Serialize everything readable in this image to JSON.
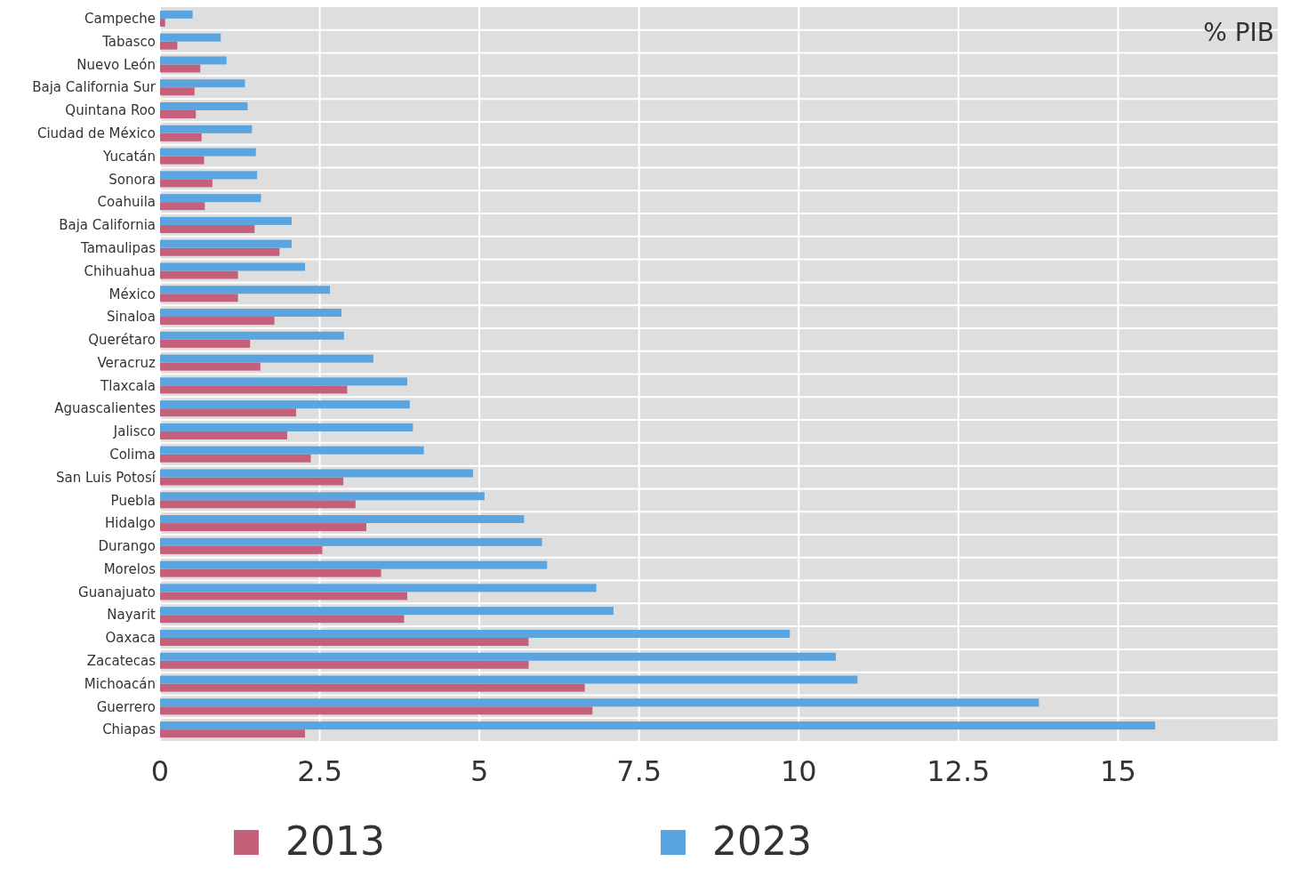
{
  "chart_data": {
    "type": "bar",
    "orientation": "horizontal",
    "categories": [
      "Campeche",
      "Tabasco",
      "Nuevo León",
      "Baja California Sur",
      "Quintana Roo",
      "Ciudad de México",
      "Yucatán",
      "Sonora",
      "Coahuila",
      "Baja California",
      "Tamaulipas",
      "Chihuahua",
      "México",
      "Sinaloa",
      "Querétaro",
      "Veracruz",
      "Tlaxcala",
      "Aguascalientes",
      "Jalisco",
      "Colima",
      "San Luis Potosí",
      "Puebla",
      "Hidalgo",
      "Durango",
      "Morelos",
      "Guanajuato",
      "Nayarit",
      "Oaxaca",
      "Zacatecas",
      "Michoacán",
      "Guerrero",
      "Chiapas"
    ],
    "series": [
      {
        "name": "2013",
        "color": "#c4607a",
        "values": [
          0.08,
          0.27,
          0.63,
          0.54,
          0.56,
          0.65,
          0.69,
          0.82,
          0.7,
          1.48,
          1.87,
          1.22,
          1.22,
          1.79,
          1.41,
          1.57,
          2.93,
          2.13,
          1.99,
          2.36,
          2.87,
          3.06,
          3.23,
          2.54,
          3.46,
          3.87,
          3.82,
          5.77,
          5.77,
          6.65,
          6.77,
          2.27
        ]
      },
      {
        "name": "2023",
        "color": "#5aa5e0",
        "values": [
          0.51,
          0.95,
          1.04,
          1.33,
          1.37,
          1.44,
          1.5,
          1.52,
          1.58,
          2.06,
          2.06,
          2.27,
          2.66,
          2.84,
          2.88,
          3.34,
          3.87,
          3.91,
          3.96,
          4.13,
          4.9,
          5.08,
          5.7,
          5.98,
          6.06,
          6.83,
          7.1,
          9.86,
          10.58,
          10.92,
          13.76,
          15.58
        ]
      }
    ],
    "xlim": [
      0,
      17.5
    ],
    "xticks": [
      0,
      2.5,
      5,
      7.5,
      10,
      12.5,
      15
    ],
    "grid": true,
    "legend": "bottom",
    "annotations": [
      "% PIB"
    ]
  }
}
